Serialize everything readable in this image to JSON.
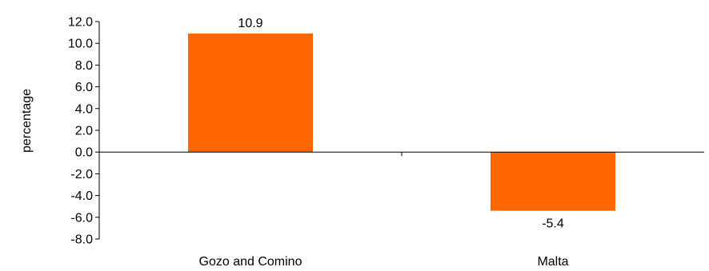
{
  "chart_data": {
    "type": "bar",
    "categories": [
      "Gozo and Comino",
      "Malta"
    ],
    "values": [
      10.9,
      -5.4
    ],
    "data_labels": [
      "10.9",
      "-5.4"
    ],
    "ylabel": "percentage",
    "xlabel": "",
    "ylim": [
      -8.0,
      12.0
    ],
    "yticks": [
      12.0,
      10.0,
      8.0,
      6.0,
      4.0,
      2.0,
      0.0,
      -2.0,
      -4.0,
      -6.0,
      -8.0
    ],
    "ytick_labels": [
      "12.0",
      "10.0",
      "8.0",
      "6.0",
      "4.0",
      "2.0",
      "0.0",
      "-2.0",
      "-4.0",
      "-6.0",
      "-8.0"
    ],
    "grid": false,
    "legend": "none",
    "bar_color": "#FF6600"
  }
}
